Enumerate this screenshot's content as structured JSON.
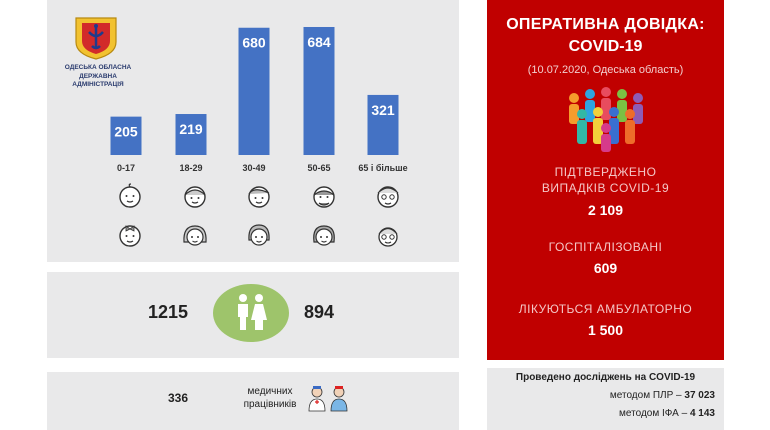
{
  "admin": {
    "name_lines": [
      "ОДЕСЬКА ОБЛАСНА",
      "ДЕРЖАВНА",
      "АДМІНІСТРАЦІЯ"
    ]
  },
  "chart_data": {
    "type": "bar",
    "title": "",
    "xlabel": "",
    "ylabel": "",
    "categories": [
      "0-17",
      "18-29",
      "30-49",
      "50-65",
      "65 і більше"
    ],
    "values": [
      205,
      219,
      680,
      684,
      321
    ],
    "value_labels": [
      "205",
      "219",
      "680",
      "684",
      "321"
    ],
    "ylim": [
      0,
      700
    ],
    "grid": false,
    "bar_color": "#4472c4"
  },
  "gender": {
    "male": "1215",
    "female": "894",
    "circle_color": "#9ec46b"
  },
  "medics": {
    "count": "336",
    "label_lines": [
      "медичних",
      "працівників"
    ]
  },
  "report": {
    "title_line1": "ОПЕРАТИВНА ДОВІДКА:",
    "title_line2": "COVID-19",
    "subtitle": "(10.07.2020, Одеська область)",
    "panel_color": "#c00000",
    "confirmed_label_line1": "ПІДТВЕРДЖЕНО",
    "confirmed_label_line2": "ВИПАДКІВ COVID-19",
    "confirmed_value": "2 109",
    "hospitalized_label": "ГОСПІТАЛІЗОВАНІ",
    "hospitalized_value": "609",
    "outpatient_label": "ЛІКУЮТЬСЯ АМБУЛАТОРНО",
    "outpatient_value": "1 500"
  },
  "tests": {
    "title": "Проведено досліджень на COVID-19",
    "pcr_label": "методом ПЛР – ",
    "pcr_value": "37 023",
    "ifa_label": "методом ІФА – ",
    "ifa_value": "4 143"
  }
}
